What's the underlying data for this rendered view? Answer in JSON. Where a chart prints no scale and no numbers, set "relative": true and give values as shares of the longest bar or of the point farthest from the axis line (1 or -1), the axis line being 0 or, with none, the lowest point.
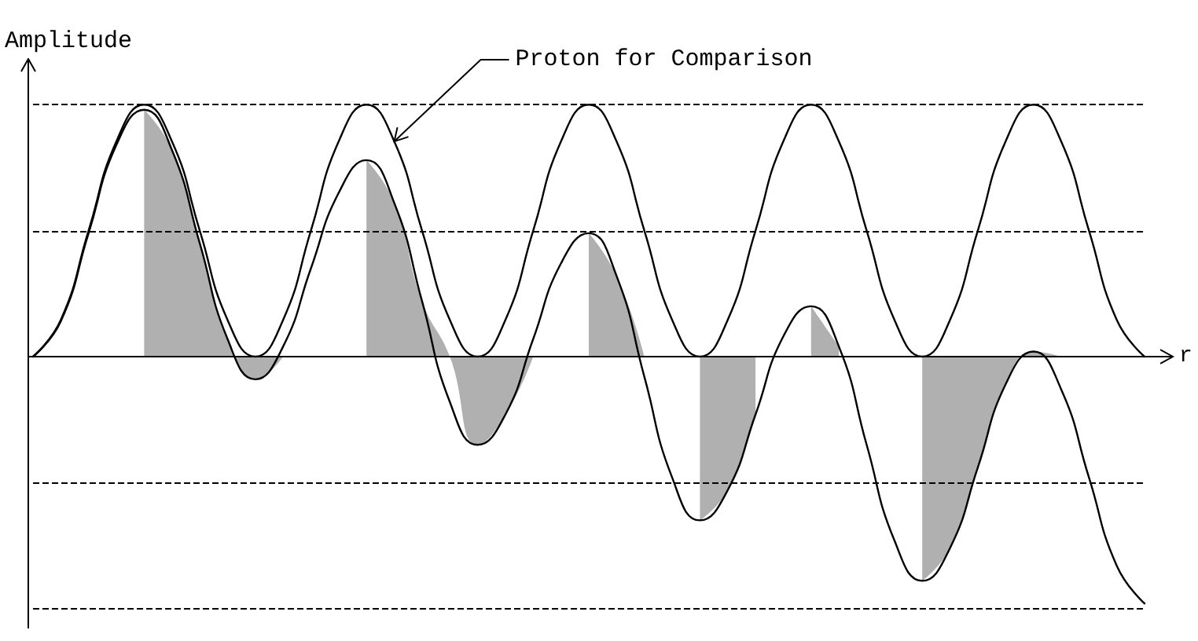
{
  "chart_data": {
    "type": "line",
    "relative": true,
    "ylabel": "Amplitude",
    "xlabel": "r",
    "categories": [
      null,
      null,
      null,
      null,
      null,
      null,
      null,
      null,
      null,
      null,
      null,
      null,
      null,
      null,
      null,
      null,
      null,
      null,
      null,
      null,
      null,
      null,
      null,
      null,
      null,
      null,
      null,
      null,
      null,
      null,
      null,
      null,
      null,
      null,
      null,
      null,
      null,
      null,
      null,
      null,
      null
    ],
    "series": [
      {
        "name": "Proton for Comparison",
        "color": "#000000",
        "values": [
          0,
          0.146,
          0.5,
          0.854,
          1,
          0.854,
          0.5,
          0.146,
          0,
          0.146,
          0.5,
          0.854,
          1,
          0.854,
          0.5,
          0.146,
          0,
          0.146,
          0.5,
          0.854,
          1,
          0.854,
          0.5,
          0.146,
          0,
          0.146,
          0.5,
          0.854,
          1,
          0.854,
          0.5,
          0.146,
          0,
          0.146,
          0.5,
          0.854,
          1,
          0.854,
          0.5,
          0.146,
          0
        ]
      },
      {
        "color": "#000000",
        "values": [
          0,
          0.14,
          0.49,
          0.84,
          0.98,
          0.82,
          0.45,
          0.07,
          -0.09,
          0.04,
          0.35,
          0.65,
          0.78,
          0.61,
          0.22,
          -0.18,
          -0.35,
          -0.23,
          0.07,
          0.37,
          0.49,
          0.32,
          -0.08,
          -0.48,
          -0.65,
          -0.53,
          -0.23,
          0.08,
          0.2,
          0.04,
          -0.35,
          -0.73,
          -0.89,
          -0.76,
          -0.44,
          -0.11,
          0.02,
          -0.13,
          -0.48,
          -0.83,
          -0.98
        ]
      },
      {
        "type": "area",
        "color": "#b0b0b0",
        "values": [
          null,
          null,
          null,
          null,
          0.98,
          0.82,
          0.45,
          0.07,
          -0.09,
          0,
          null,
          null,
          0.78,
          0.61,
          0.22,
          0,
          -0.35,
          -0.23,
          0,
          null,
          0.49,
          0.32,
          0,
          null,
          -0.65,
          -0.53,
          -0.23,
          null,
          0.2,
          0.04,
          null,
          null,
          -0.89,
          -0.76,
          -0.44,
          -0.11,
          0.02,
          0,
          null,
          null,
          null
        ]
      }
    ],
    "ref_lines": [
      {
        "axis": "y",
        "value": 1,
        "line_style": "dashed",
        "color": "#000000"
      },
      {
        "axis": "y",
        "value": 0.5,
        "line_style": "dashed",
        "color": "#000000"
      },
      {
        "axis": "y",
        "value": -0.5,
        "line_style": "dashed",
        "color": "#000000"
      },
      {
        "axis": "y",
        "value": -1,
        "line_style": "dashed",
        "color": "#000000"
      }
    ],
    "grid": false,
    "legend": false,
    "marker": "none",
    "line_style": "solid"
  }
}
